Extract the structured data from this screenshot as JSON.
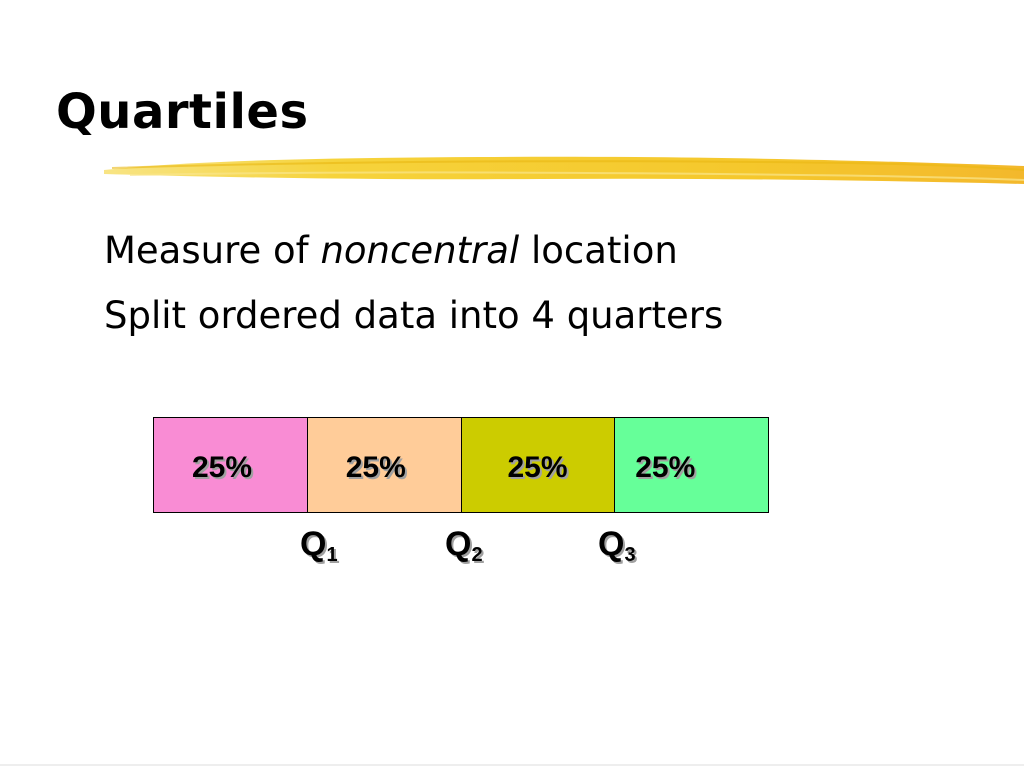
{
  "slide": {
    "title": "Quartiles",
    "bullets": {
      "line1": {
        "prefix": "Measure of ",
        "emphasis": "noncentral",
        "suffix": " location"
      },
      "line2": "Split ordered data into 4 quarters"
    },
    "accent_color": "#F5C518"
  },
  "diagram": {
    "segments": [
      {
        "label": "25%",
        "color": "#F98CD4"
      },
      {
        "label": "25%",
        "color": "#FFCC99"
      },
      {
        "label": "25%",
        "color": "#CCCC00"
      },
      {
        "label": "25%",
        "color": "#66FF99"
      }
    ],
    "quartile_markers": [
      {
        "letter": "Q",
        "index": "1"
      },
      {
        "letter": "Q",
        "index": "2"
      },
      {
        "letter": "Q",
        "index": "3"
      }
    ]
  }
}
